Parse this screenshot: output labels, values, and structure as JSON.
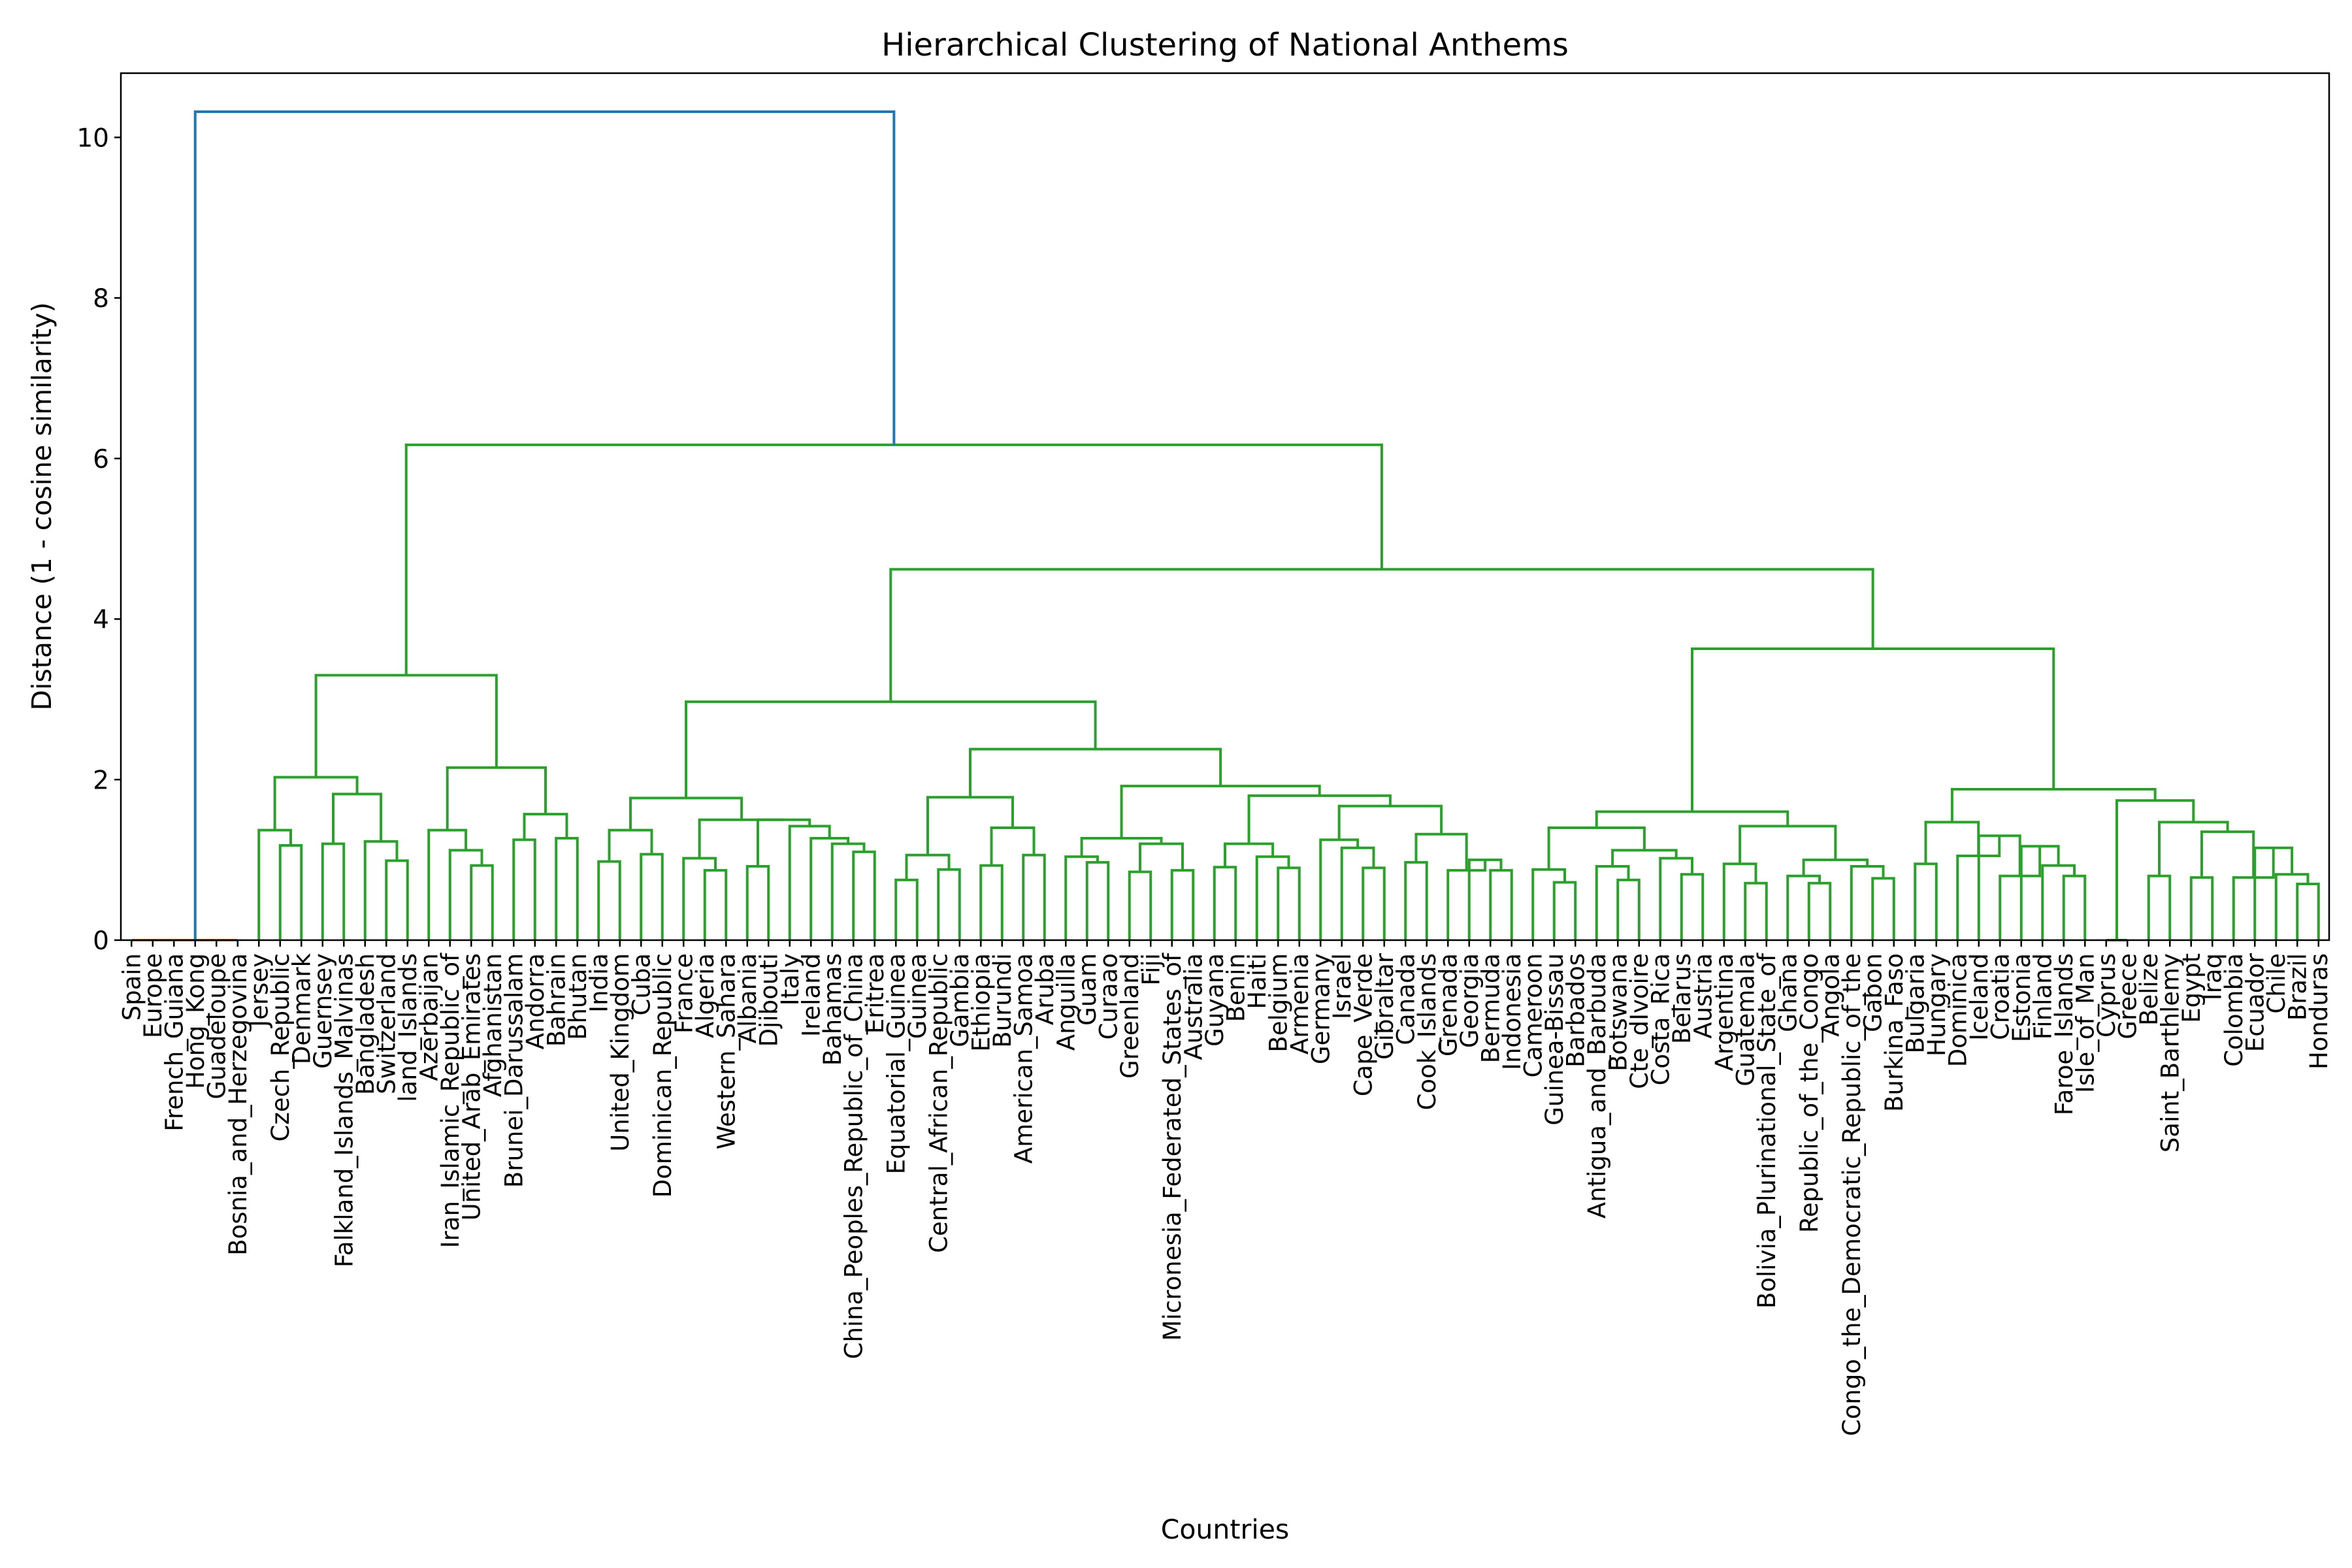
{
  "chart_data": {
    "type": "dendrogram",
    "title": "Hierarchical Clustering of National Anthems",
    "xlabel": "Countries",
    "ylabel": "Distance (1 - cosine similarity)",
    "ylim": [
      0,
      10.8
    ],
    "yticks": [
      0,
      2,
      4,
      6,
      8,
      10
    ],
    "grid": false,
    "colors": {
      "above_threshold": "#1f77b4",
      "cluster_a": "#ff7f0e",
      "cluster_b": "#2ca02c"
    },
    "leaves": [
      "Spain",
      "Europe",
      "French_Guiana",
      "Hong_Kong",
      "Guadeloupe",
      "Bosnia_and_Herzegovina",
      "Jersey",
      "Czech_Republic",
      "Denmark",
      "Guernsey",
      "Falkland_Islands_Malvinas",
      "Bangladesh",
      "Switzerland",
      "land_Islands",
      "Azerbaijan",
      "Iran_Islamic_Republic_of",
      "United_Arab_Emirates",
      "Afghanistan",
      "Brunei_Darussalam",
      "Andorra",
      "Bahrain",
      "Bhutan",
      "India",
      "United_Kingdom",
      "Cuba",
      "Dominican_Republic",
      "France",
      "Algeria",
      "Western_Sahara",
      "Albania",
      "Djibouti",
      "Italy",
      "Ireland",
      "Bahamas",
      "China_Peoples_Republic_of_China",
      "Eritrea",
      "Equatorial_Guinea",
      "Guinea",
      "Central_African_Republic",
      "Gambia",
      "Ethiopia",
      "Burundi",
      "American_Samoa",
      "Aruba",
      "Anguilla",
      "Guam",
      "Curaao",
      "Greenland",
      "Fiji",
      "Micronesia_Federated_States_of",
      "Australia",
      "Guyana",
      "Benin",
      "Haiti",
      "Belgium",
      "Armenia",
      "Germany",
      "Israel",
      "Cape_Verde",
      "Gibraltar",
      "Canada",
      "Cook_Islands",
      "Grenada",
      "Georgia",
      "Bermuda",
      "Indonesia",
      "Cameroon",
      "Guinea-Bissau",
      "Barbados",
      "Antigua_and_Barbuda",
      "Botswana",
      "Cte_dIvoire",
      "Costa_Rica",
      "Belarus",
      "Austria",
      "Argentina",
      "Guatemala",
      "Bolivia_Plurinational_State_of",
      "Ghana",
      "Republic_of_the_Congo",
      "Angola",
      "Congo_the_Democratic_Republic_of_the",
      "Gabon",
      "Burkina_Faso",
      "Bulgaria",
      "Hungary",
      "Dominica",
      "Iceland",
      "Croatia",
      "Estonia",
      "Finland",
      "Faroe_Islands",
      "Isle_of_Man",
      "Cyprus",
      "Greece",
      "Belize",
      "Saint_Barthlemy",
      "Egypt",
      "Iraq",
      "Colombia",
      "Ecuador",
      "Chile",
      "Brazil",
      "Honduras"
    ],
    "merges": [
      {
        "left": 0,
        "right": 1,
        "height": 0,
        "color": "cluster_a"
      },
      {
        "left": 2,
        "right": 3,
        "height": 0,
        "color": "cluster_a"
      },
      {
        "left": 4,
        "right": 5,
        "height": 0,
        "color": "cluster_a"
      },
      {
        "left": 104,
        "right": 105,
        "height": 0,
        "color": "cluster_a"
      },
      {
        "left": 106,
        "right": 107,
        "height": 0,
        "color": "cluster_a"
      },
      {
        "left": 7,
        "right": 8,
        "height": 1.18,
        "color": "cluster_b"
      },
      {
        "left": 6,
        "right": 109,
        "height": 1.37,
        "color": "cluster_b"
      },
      {
        "left": 9,
        "right": 10,
        "height": 1.2,
        "color": "cluster_b"
      },
      {
        "left": 12,
        "right": 13,
        "height": 0.99,
        "color": "cluster_b"
      },
      {
        "left": 11,
        "right": 112,
        "height": 1.23,
        "color": "cluster_b"
      },
      {
        "left": 111,
        "right": 113,
        "height": 1.82,
        "color": "cluster_b"
      },
      {
        "left": 110,
        "right": 114,
        "height": 2.03,
        "color": "cluster_b"
      },
      {
        "left": 16,
        "right": 17,
        "height": 0.93,
        "color": "cluster_b"
      },
      {
        "left": 15,
        "right": 116,
        "height": 1.12,
        "color": "cluster_b"
      },
      {
        "left": 14,
        "right": 117,
        "height": 1.37,
        "color": "cluster_b"
      },
      {
        "left": 20,
        "right": 21,
        "height": 1.27,
        "color": "cluster_b"
      },
      {
        "left": 18,
        "right": 19,
        "height": 1.25,
        "color": "cluster_b"
      },
      {
        "left": 120,
        "right": 119,
        "height": 1.57,
        "color": "cluster_b"
      },
      {
        "left": 118,
        "right": 121,
        "height": 2.15,
        "color": "cluster_b"
      },
      {
        "left": 115,
        "right": 122,
        "height": 3.3,
        "color": "cluster_b"
      },
      {
        "left": 24,
        "right": 25,
        "height": 1.07,
        "color": "cluster_b"
      },
      {
        "left": 22,
        "right": 23,
        "height": 0.98,
        "color": "cluster_b"
      },
      {
        "left": 125,
        "right": 124,
        "height": 1.37,
        "color": "cluster_b"
      },
      {
        "left": 27,
        "right": 28,
        "height": 0.87,
        "color": "cluster_b"
      },
      {
        "left": 26,
        "right": 127,
        "height": 1.02,
        "color": "cluster_b"
      },
      {
        "left": 29,
        "right": 30,
        "height": 0.92,
        "color": "cluster_b"
      },
      {
        "left": 34,
        "right": 35,
        "height": 1.1,
        "color": "cluster_b"
      },
      {
        "left": 33,
        "right": 130,
        "height": 1.2,
        "color": "cluster_b"
      },
      {
        "left": 32,
        "right": 131,
        "height": 1.27,
        "color": "cluster_b"
      },
      {
        "left": 31,
        "right": 132,
        "height": 1.42,
        "color": "cluster_b"
      },
      {
        "left": 129,
        "right": 133,
        "height": 1.5,
        "color": "cluster_b"
      },
      {
        "left": 128,
        "right": 134,
        "height": 1.5,
        "color": "cluster_b"
      },
      {
        "left": 126,
        "right": 135,
        "height": 1.77,
        "color": "cluster_b"
      },
      {
        "left": 36,
        "right": 37,
        "height": 0.75,
        "color": "cluster_b"
      },
      {
        "left": 38,
        "right": 39,
        "height": 0.88,
        "color": "cluster_b"
      },
      {
        "left": 137,
        "right": 138,
        "height": 1.06,
        "color": "cluster_b"
      },
      {
        "left": 40,
        "right": 41,
        "height": 0.93,
        "color": "cluster_b"
      },
      {
        "left": 42,
        "right": 43,
        "height": 1.06,
        "color": "cluster_b"
      },
      {
        "left": 140,
        "right": 141,
        "height": 1.4,
        "color": "cluster_b"
      },
      {
        "left": 139,
        "right": 142,
        "height": 1.78,
        "color": "cluster_b"
      },
      {
        "left": 45,
        "right": 46,
        "height": 0.97,
        "color": "cluster_b"
      },
      {
        "left": 44,
        "right": 144,
        "height": 1.04,
        "color": "cluster_b"
      },
      {
        "left": 47,
        "right": 48,
        "height": 0.85,
        "color": "cluster_b"
      },
      {
        "left": 49,
        "right": 50,
        "height": 0.87,
        "color": "cluster_b"
      },
      {
        "left": 146,
        "right": 147,
        "height": 1.2,
        "color": "cluster_b"
      },
      {
        "left": 145,
        "right": 148,
        "height": 1.27,
        "color": "cluster_b"
      },
      {
        "left": 54,
        "right": 55,
        "height": 0.9,
        "color": "cluster_b"
      },
      {
        "left": 53,
        "right": 150,
        "height": 1.04,
        "color": "cluster_b"
      },
      {
        "left": 51,
        "right": 52,
        "height": 0.91,
        "color": "cluster_b"
      },
      {
        "left": 152,
        "right": 151,
        "height": 1.2,
        "color": "cluster_b"
      },
      {
        "left": 58,
        "right": 59,
        "height": 0.9,
        "color": "cluster_b"
      },
      {
        "left": 57,
        "right": 154,
        "height": 1.15,
        "color": "cluster_b"
      },
      {
        "left": 56,
        "right": 155,
        "height": 1.25,
        "color": "cluster_b"
      },
      {
        "left": 60,
        "right": 61,
        "height": 0.97,
        "color": "cluster_b"
      },
      {
        "left": 64,
        "right": 65,
        "height": 0.87,
        "color": "cluster_b"
      },
      {
        "left": 63,
        "right": 158,
        "height": 1.0,
        "color": "cluster_b"
      },
      {
        "left": 62,
        "right": 159,
        "height": 0.87,
        "color": "cluster_b"
      },
      {
        "left": 157,
        "right": 160,
        "height": 1.32,
        "color": "cluster_b"
      },
      {
        "left": 156,
        "right": 161,
        "height": 1.67,
        "color": "cluster_b"
      },
      {
        "left": 153,
        "right": 162,
        "height": 1.8,
        "color": "cluster_b"
      },
      {
        "left": 149,
        "right": 163,
        "height": 1.92,
        "color": "cluster_b"
      },
      {
        "left": 143,
        "right": 164,
        "height": 2.38,
        "color": "cluster_b"
      },
      {
        "left": 136,
        "right": 165,
        "height": 2.97,
        "color": "cluster_b"
      },
      {
        "left": 67,
        "right": 68,
        "height": 0.72,
        "color": "cluster_b"
      },
      {
        "left": 66,
        "right": 167,
        "height": 0.88,
        "color": "cluster_b"
      },
      {
        "left": 70,
        "right": 71,
        "height": 0.75,
        "color": "cluster_b"
      },
      {
        "left": 69,
        "right": 169,
        "height": 0.92,
        "color": "cluster_b"
      },
      {
        "left": 73,
        "right": 74,
        "height": 0.82,
        "color": "cluster_b"
      },
      {
        "left": 72,
        "right": 171,
        "height": 1.02,
        "color": "cluster_b"
      },
      {
        "left": 170,
        "right": 172,
        "height": 1.12,
        "color": "cluster_b"
      },
      {
        "left": 168,
        "right": 173,
        "height": 1.4,
        "color": "cluster_b"
      },
      {
        "left": 76,
        "right": 77,
        "height": 0.71,
        "color": "cluster_b"
      },
      {
        "left": 75,
        "right": 175,
        "height": 0.95,
        "color": "cluster_b"
      },
      {
        "left": 79,
        "right": 80,
        "height": 0.71,
        "color": "cluster_b"
      },
      {
        "left": 78,
        "right": 177,
        "height": 0.8,
        "color": "cluster_b"
      },
      {
        "left": 82,
        "right": 83,
        "height": 0.77,
        "color": "cluster_b"
      },
      {
        "left": 81,
        "right": 179,
        "height": 0.92,
        "color": "cluster_b"
      },
      {
        "left": 178,
        "right": 180,
        "height": 1.0,
        "color": "cluster_b"
      },
      {
        "left": 176,
        "right": 181,
        "height": 1.42,
        "color": "cluster_b"
      },
      {
        "left": 174,
        "right": 182,
        "height": 1.6,
        "color": "cluster_b"
      },
      {
        "left": 91,
        "right": 92,
        "height": 0.8,
        "color": "cluster_b"
      },
      {
        "left": 90,
        "right": 184,
        "height": 0.93,
        "color": "cluster_b"
      },
      {
        "left": 89,
        "right": 185,
        "height": 1.17,
        "color": "cluster_b"
      },
      {
        "left": 88,
        "right": 186,
        "height": 0.8,
        "color": "cluster_b"
      },
      {
        "left": 87,
        "right": 187,
        "height": 1.3,
        "color": "cluster_b"
      },
      {
        "left": 86,
        "right": 188,
        "height": 1.05,
        "color": "cluster_b"
      },
      {
        "left": 84,
        "right": 85,
        "height": 0.95,
        "color": "cluster_b"
      },
      {
        "left": 190,
        "right": 189,
        "height": 1.47,
        "color": "cluster_b"
      },
      {
        "left": 95,
        "right": 96,
        "height": 0.8,
        "color": "cluster_b"
      },
      {
        "left": 97,
        "right": 98,
        "height": 0.78,
        "color": "cluster_b"
      },
      {
        "left": 102,
        "right": 103,
        "height": 0.7,
        "color": "cluster_b"
      },
      {
        "left": 101,
        "right": 194,
        "height": 0.82,
        "color": "cluster_b"
      },
      {
        "left": 100,
        "right": 195,
        "height": 1.15,
        "color": "cluster_b"
      },
      {
        "left": 99,
        "right": 196,
        "height": 0.78,
        "color": "cluster_b"
      },
      {
        "left": 193,
        "right": 197,
        "height": 1.35,
        "color": "cluster_b"
      },
      {
        "left": 192,
        "right": 198,
        "height": 1.47,
        "color": "cluster_b"
      },
      {
        "left": 93,
        "right": 94,
        "height": 0.0,
        "color": "cluster_b"
      },
      {
        "left": 200,
        "right": 199,
        "height": 1.74,
        "color": "cluster_b"
      },
      {
        "left": 191,
        "right": 201,
        "height": 1.88,
        "color": "cluster_b"
      },
      {
        "left": 183,
        "right": 202,
        "height": 3.63,
        "color": "cluster_b"
      },
      {
        "left": 166,
        "right": 203,
        "height": 4.62,
        "color": "cluster_b"
      },
      {
        "left": 123,
        "right": 204,
        "height": 6.17,
        "color": "cluster_b"
      },
      {
        "left": 108,
        "right": 205,
        "height": 10.32,
        "color": "above_threshold"
      }
    ]
  }
}
